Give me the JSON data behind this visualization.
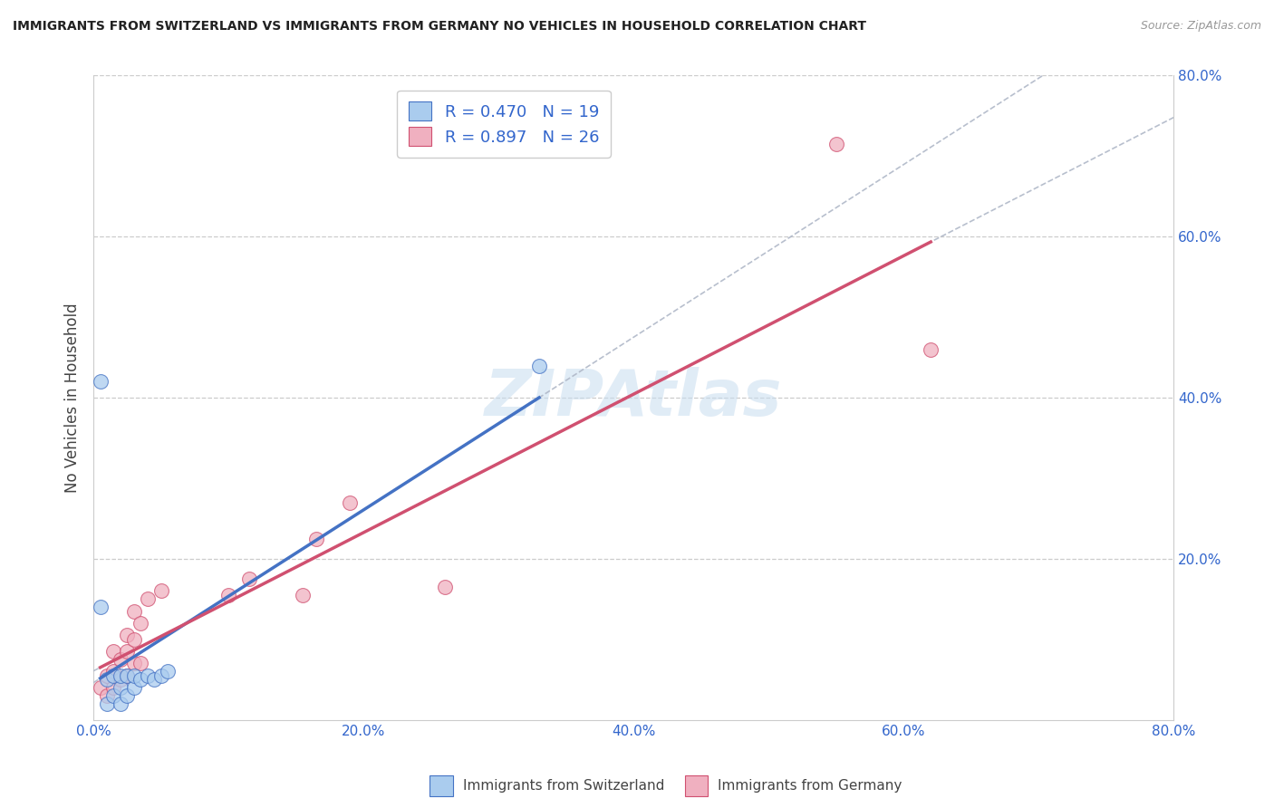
{
  "title": "IMMIGRANTS FROM SWITZERLAND VS IMMIGRANTS FROM GERMANY NO VEHICLES IN HOUSEHOLD CORRELATION CHART",
  "source": "Source: ZipAtlas.com",
  "ylabel": "No Vehicles in Household",
  "legend_label1": "Immigrants from Switzerland",
  "legend_label2": "Immigrants from Germany",
  "r_switzerland": 0.47,
  "n_switzerland": 19,
  "r_germany": 0.897,
  "n_germany": 26,
  "xlim": [
    0.0,
    0.8
  ],
  "ylim": [
    0.0,
    0.8
  ],
  "xtick_labels": [
    "0.0%",
    "20.0%",
    "40.0%",
    "60.0%",
    "80.0%"
  ],
  "xtick_values": [
    0.0,
    0.2,
    0.4,
    0.6,
    0.8
  ],
  "ytick_labels": [
    "20.0%",
    "40.0%",
    "60.0%",
    "80.0%"
  ],
  "ytick_values": [
    0.2,
    0.4,
    0.6,
    0.8
  ],
  "color_switzerland_fill": "#aaccee",
  "color_switzerland_edge": "#4472c4",
  "color_germany_fill": "#f0b0c0",
  "color_germany_edge": "#d05070",
  "color_line_switzerland": "#4472c4",
  "color_line_germany": "#d05070",
  "color_dashed": "#b0b8c8",
  "grid_color": "#cccccc",
  "watermark_color": "#c8ddf0",
  "switzerland_x": [
    0.005,
    0.01,
    0.01,
    0.015,
    0.015,
    0.02,
    0.02,
    0.02,
    0.025,
    0.025,
    0.03,
    0.03,
    0.035,
    0.04,
    0.045,
    0.05,
    0.055,
    0.005,
    0.33
  ],
  "switzerland_y": [
    0.14,
    0.02,
    0.05,
    0.03,
    0.055,
    0.02,
    0.04,
    0.055,
    0.03,
    0.055,
    0.04,
    0.055,
    0.05,
    0.055,
    0.05,
    0.055,
    0.06,
    0.42,
    0.44
  ],
  "germany_x": [
    0.005,
    0.01,
    0.01,
    0.015,
    0.015,
    0.015,
    0.02,
    0.02,
    0.025,
    0.025,
    0.025,
    0.03,
    0.03,
    0.03,
    0.035,
    0.035,
    0.04,
    0.05,
    0.1,
    0.115,
    0.155,
    0.165,
    0.19,
    0.26,
    0.55,
    0.62
  ],
  "germany_y": [
    0.04,
    0.03,
    0.055,
    0.04,
    0.06,
    0.085,
    0.05,
    0.075,
    0.055,
    0.085,
    0.105,
    0.07,
    0.1,
    0.135,
    0.07,
    0.12,
    0.15,
    0.16,
    0.155,
    0.175,
    0.155,
    0.225,
    0.27,
    0.165,
    0.715,
    0.46
  ]
}
